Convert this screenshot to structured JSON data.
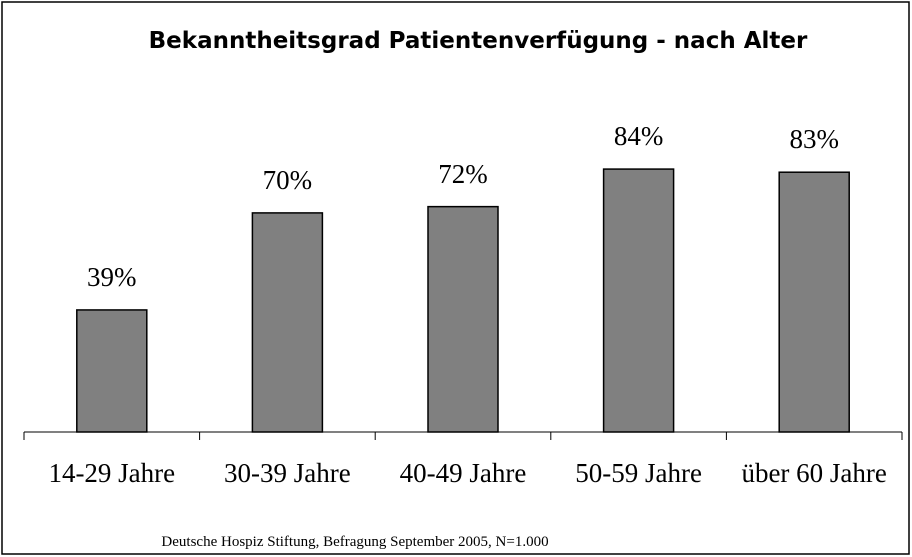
{
  "chart_data": {
    "type": "bar",
    "title": "Bekanntheitsgrad Patientenverfügung - nach Alter",
    "categories": [
      "14-29 Jahre",
      "30-39 Jahre",
      "40-49 Jahre",
      "50-59 Jahre",
      "über 60 Jahre"
    ],
    "values": [
      39,
      70,
      72,
      84,
      83
    ],
    "value_labels": [
      "39%",
      "70%",
      "72%",
      "84%",
      "83%"
    ],
    "color": "#808080",
    "ylim": [
      0,
      100
    ],
    "source": "Deutsche Hospiz Stiftung, Befragung September 2005, N=1.000"
  }
}
